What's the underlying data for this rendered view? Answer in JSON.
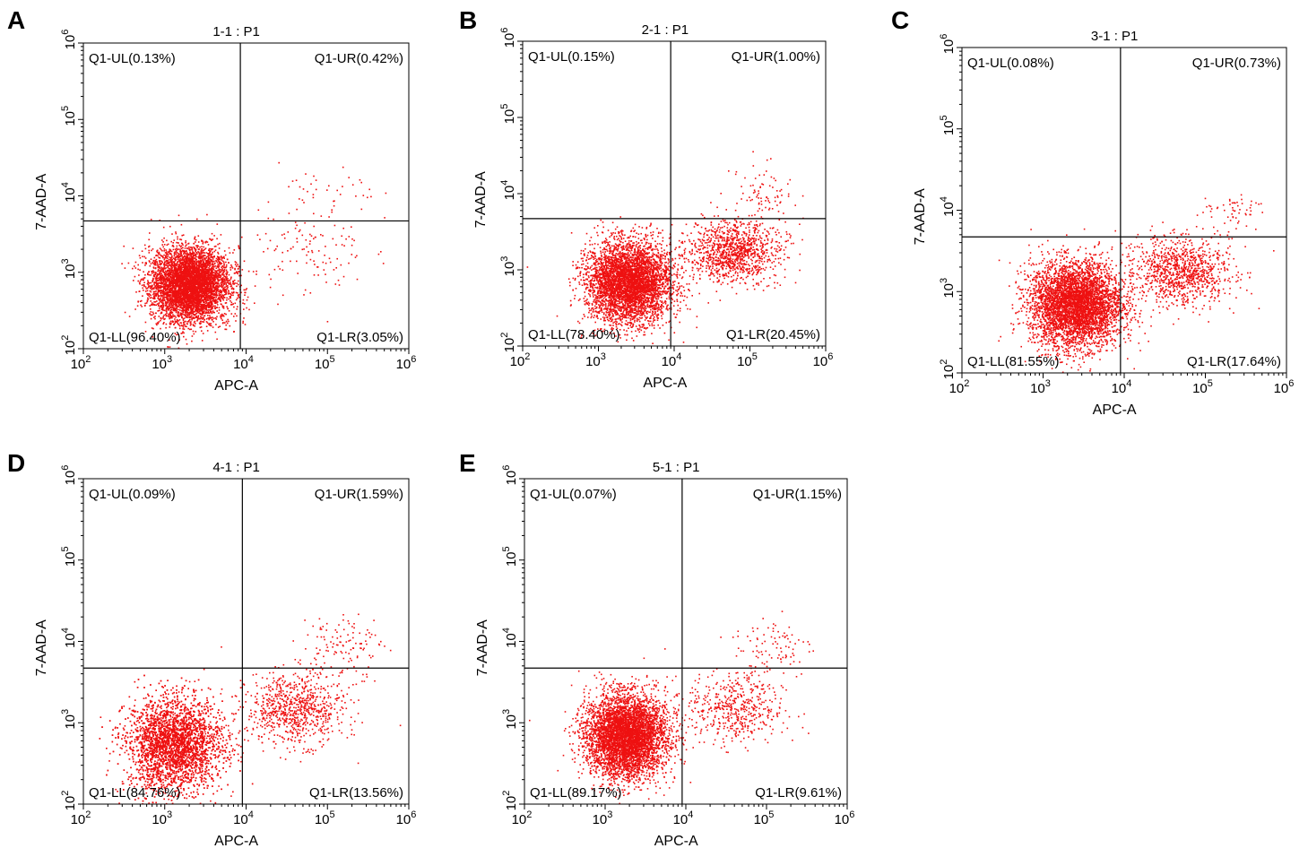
{
  "chart_data": [
    {
      "panel": "A",
      "title": "1-1 : P1",
      "type": "scatter",
      "xlabel": "APC-A",
      "ylabel": "7-AAD-A",
      "x_scale": "log",
      "y_scale": "log",
      "xlim": [
        100,
        1000000
      ],
      "ylim": [
        100,
        1000000
      ],
      "x_ticks": [
        {
          "base": "10",
          "exp": "2"
        },
        {
          "base": "10",
          "exp": "3"
        },
        {
          "base": "10",
          "exp": "4"
        },
        {
          "base": "10",
          "exp": "5"
        },
        {
          "base": "10",
          "exp": "6"
        }
      ],
      "y_ticks": [
        {
          "base": "10",
          "exp": "2"
        },
        {
          "base": "10",
          "exp": "3"
        },
        {
          "base": "10",
          "exp": "4"
        },
        {
          "base": "10",
          "exp": "5"
        },
        {
          "base": "10",
          "exp": "6"
        }
      ],
      "gate_x": 8500,
      "gate_y": 4700,
      "quadrants": {
        "UL": "Q1-UL(0.13%)",
        "UR": "Q1-UR(0.42%)",
        "LL": "Q1-LL(96.40%)",
        "LR": "Q1-LR(3.05%)"
      },
      "point_color": "#ee1111",
      "clusters": [
        {
          "cx": 2000,
          "cy": 700,
          "sx": 0.24,
          "sy": 0.24,
          "n": 5200
        },
        {
          "cx": 60000,
          "cy": 2000,
          "sx": 0.35,
          "sy": 0.3,
          "n": 120
        },
        {
          "cx": 100000,
          "cy": 10000,
          "sx": 0.3,
          "sy": 0.2,
          "n": 40
        }
      ]
    },
    {
      "panel": "B",
      "title": "2-1 : P1",
      "type": "scatter",
      "xlabel": "APC-A",
      "ylabel": "7-AAD-A",
      "x_scale": "log",
      "y_scale": "log",
      "xlim": [
        100,
        1000000
      ],
      "ylim": [
        100,
        1000000
      ],
      "x_ticks": [
        {
          "base": "10",
          "exp": "2"
        },
        {
          "base": "10",
          "exp": "3"
        },
        {
          "base": "10",
          "exp": "4"
        },
        {
          "base": "10",
          "exp": "5"
        },
        {
          "base": "10",
          "exp": "6"
        }
      ],
      "y_ticks": [
        {
          "base": "10",
          "exp": "2"
        },
        {
          "base": "10",
          "exp": "3"
        },
        {
          "base": "10",
          "exp": "4"
        },
        {
          "base": "10",
          "exp": "5"
        },
        {
          "base": "10",
          "exp": "6"
        }
      ],
      "gate_x": 9000,
      "gate_y": 4700,
      "quadrants": {
        "UL": "Q1-UL(0.15%)",
        "UR": "Q1-UR(1.00%)",
        "LL": "Q1-LL(78.40%)",
        "LR": "Q1-LR(20.45%)"
      },
      "point_color": "#ee1111",
      "clusters": [
        {
          "cx": 2500,
          "cy": 700,
          "sx": 0.28,
          "sy": 0.26,
          "n": 4500
        },
        {
          "cx": 60000,
          "cy": 1800,
          "sx": 0.3,
          "sy": 0.2,
          "n": 1100
        },
        {
          "cx": 150000,
          "cy": 10000,
          "sx": 0.2,
          "sy": 0.2,
          "n": 80
        }
      ]
    },
    {
      "panel": "C",
      "title": "3-1 : P1",
      "type": "scatter",
      "xlabel": "APC-A",
      "ylabel": "7-AAD-A",
      "x_scale": "log",
      "y_scale": "log",
      "xlim": [
        100,
        1000000
      ],
      "ylim": [
        100,
        1000000
      ],
      "x_ticks": [
        {
          "base": "10",
          "exp": "2"
        },
        {
          "base": "10",
          "exp": "3"
        },
        {
          "base": "10",
          "exp": "4"
        },
        {
          "base": "10",
          "exp": "5"
        },
        {
          "base": "10",
          "exp": "6"
        }
      ],
      "y_ticks": [
        {
          "base": "10",
          "exp": "2"
        },
        {
          "base": "10",
          "exp": "3"
        },
        {
          "base": "10",
          "exp": "4"
        },
        {
          "base": "10",
          "exp": "5"
        },
        {
          "base": "10",
          "exp": "6"
        }
      ],
      "gate_x": 9000,
      "gate_y": 4700,
      "quadrants": {
        "UL": "Q1-UL(0.08%)",
        "UR": "Q1-UR(0.73%)",
        "LL": "Q1-LL(81.55%)",
        "LR": "Q1-LR(17.64%)"
      },
      "point_color": "#ee1111",
      "clusters": [
        {
          "cx": 2500,
          "cy": 700,
          "sx": 0.28,
          "sy": 0.26,
          "n": 4500
        },
        {
          "cx": 50000,
          "cy": 1800,
          "sx": 0.3,
          "sy": 0.2,
          "n": 1000
        },
        {
          "cx": 200000,
          "cy": 10000,
          "sx": 0.2,
          "sy": 0.15,
          "n": 60
        }
      ]
    },
    {
      "panel": "D",
      "title": "4-1 : P1",
      "type": "scatter",
      "xlabel": "APC-A",
      "ylabel": "7-AAD-A",
      "x_scale": "log",
      "y_scale": "log",
      "xlim": [
        100,
        1000000
      ],
      "ylim": [
        100,
        1000000
      ],
      "x_ticks": [
        {
          "base": "10",
          "exp": "2"
        },
        {
          "base": "10",
          "exp": "3"
        },
        {
          "base": "10",
          "exp": "4"
        },
        {
          "base": "10",
          "exp": "5"
        },
        {
          "base": "10",
          "exp": "6"
        }
      ],
      "y_ticks": [
        {
          "base": "10",
          "exp": "2"
        },
        {
          "base": "10",
          "exp": "3"
        },
        {
          "base": "10",
          "exp": "4"
        },
        {
          "base": "10",
          "exp": "5"
        },
        {
          "base": "10",
          "exp": "6"
        }
      ],
      "gate_x": 9000,
      "gate_y": 4700,
      "quadrants": {
        "UL": "Q1-UL(0.09%)",
        "UR": "Q1-UR(1.59%)",
        "LL": "Q1-LL(84.76%)",
        "LR": "Q1-LR(13.56%)"
      },
      "point_color": "#ee1111",
      "clusters": [
        {
          "cx": 1300,
          "cy": 550,
          "sx": 0.3,
          "sy": 0.28,
          "n": 4800
        },
        {
          "cx": 40000,
          "cy": 1500,
          "sx": 0.3,
          "sy": 0.22,
          "n": 800
        },
        {
          "cx": 150000,
          "cy": 9000,
          "sx": 0.25,
          "sy": 0.2,
          "n": 120
        }
      ]
    },
    {
      "panel": "E",
      "title": "5-1 : P1",
      "type": "scatter",
      "xlabel": "APC-A",
      "ylabel": "7-AAD-A",
      "x_scale": "log",
      "y_scale": "log",
      "xlim": [
        100,
        1000000
      ],
      "ylim": [
        100,
        1000000
      ],
      "x_ticks": [
        {
          "base": "10",
          "exp": "2"
        },
        {
          "base": "10",
          "exp": "3"
        },
        {
          "base": "10",
          "exp": "4"
        },
        {
          "base": "10",
          "exp": "5"
        },
        {
          "base": "10",
          "exp": "6"
        }
      ],
      "y_ticks": [
        {
          "base": "10",
          "exp": "2"
        },
        {
          "base": "10",
          "exp": "3"
        },
        {
          "base": "10",
          "exp": "4"
        },
        {
          "base": "10",
          "exp": "5"
        },
        {
          "base": "10",
          "exp": "6"
        }
      ],
      "gate_x": 9000,
      "gate_y": 4700,
      "quadrants": {
        "UL": "Q1-UL(0.07%)",
        "UR": "Q1-UR(1.15%)",
        "LL": "Q1-LL(89.17%)",
        "LR": "Q1-LR(9.61%)"
      },
      "point_color": "#ee1111",
      "clusters": [
        {
          "cx": 1800,
          "cy": 700,
          "sx": 0.25,
          "sy": 0.25,
          "n": 5000
        },
        {
          "cx": 40000,
          "cy": 1500,
          "sx": 0.3,
          "sy": 0.22,
          "n": 500
        },
        {
          "cx": 120000,
          "cy": 9000,
          "sx": 0.25,
          "sy": 0.2,
          "n": 90
        }
      ]
    }
  ]
}
